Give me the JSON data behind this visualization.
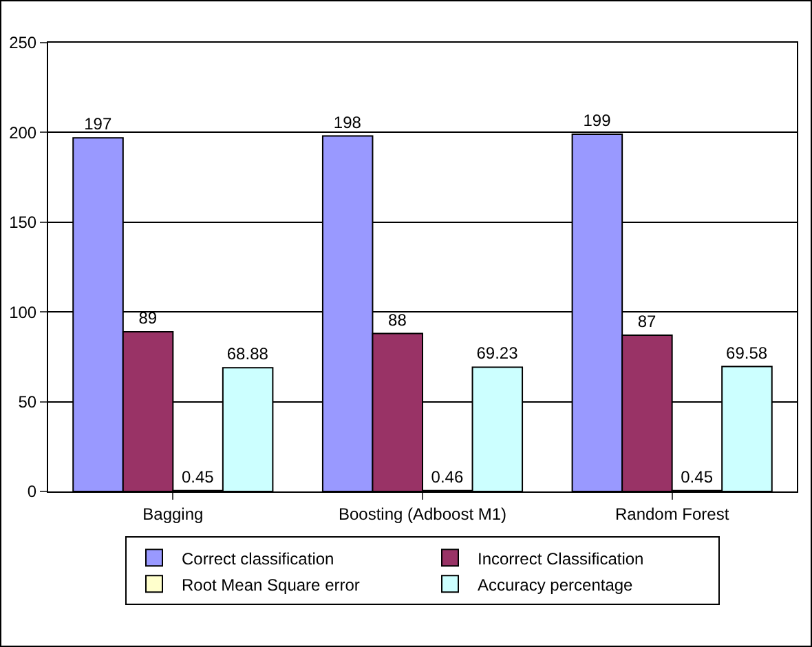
{
  "chart_data": {
    "type": "bar",
    "categories": [
      "Bagging",
      "Boosting (Adboost M1)",
      "Random Forest"
    ],
    "series": [
      {
        "name": "Correct classification",
        "color": "#9999ff",
        "values": [
          197,
          198,
          199
        ]
      },
      {
        "name": "Incorrect Classification",
        "color": "#993366",
        "values": [
          89,
          88,
          87
        ]
      },
      {
        "name": "Root Mean Square error",
        "color": "#ffffcc",
        "values": [
          0.45,
          0.46,
          0.45
        ]
      },
      {
        "name": "Accuracy percentage",
        "color": "#ccffff",
        "values": [
          68.88,
          69.23,
          69.58
        ]
      }
    ],
    "ylim": [
      0,
      250
    ],
    "yticks": [
      0,
      50,
      100,
      150,
      200,
      250
    ],
    "grid": "y",
    "legend": "bottom",
    "data_labels": true
  }
}
